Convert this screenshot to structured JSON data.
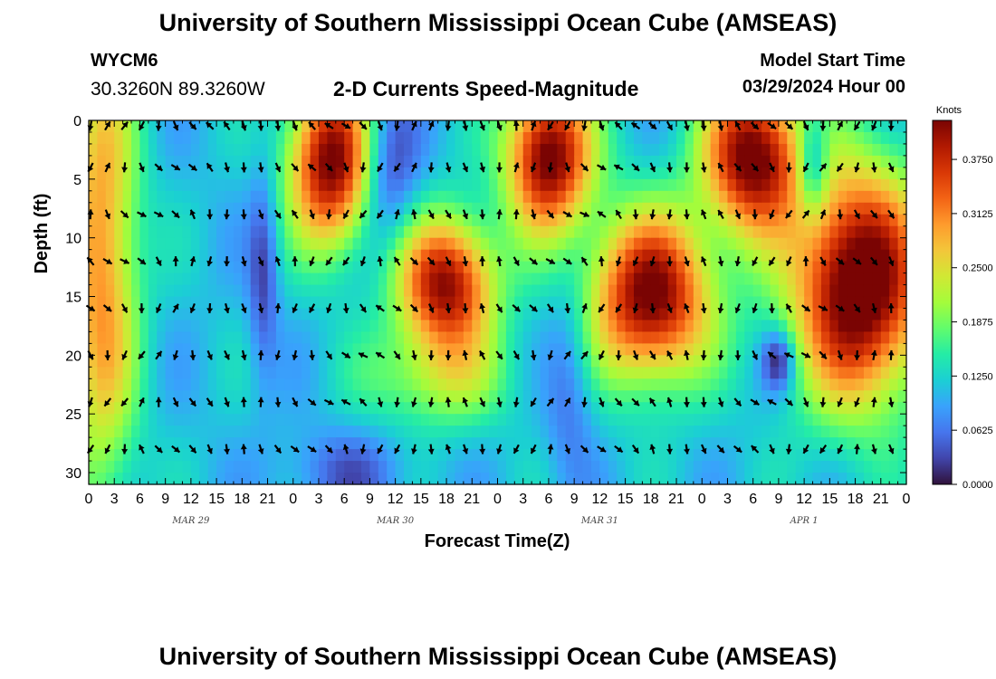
{
  "header": {
    "title_top": "University of Southern Mississippi Ocean Cube (AMSEAS)",
    "title_bottom": "University of Southern Mississippi Ocean Cube (AMSEAS)",
    "station_id": "WYCM6",
    "station_coords": "30.3260N  89.3260W",
    "plot_title": "2-D Currents Speed-Magnitude",
    "model_start_label": "Model Start Time",
    "model_start_value": "03/29/2024 Hour 00"
  },
  "chart_data": {
    "type": "heatmap",
    "title": "2-D Currents Speed-Magnitude",
    "xlabel": "Forecast Time(Z)",
    "ylabel": "Depth (ft)",
    "x_ticks": [
      "0",
      "3",
      "6",
      "9",
      "12",
      "15",
      "18",
      "21",
      "0",
      "3",
      "6",
      "9",
      "12",
      "15",
      "18",
      "21",
      "0",
      "3",
      "6",
      "9",
      "12",
      "15",
      "18",
      "21",
      "0",
      "3",
      "6",
      "9",
      "12",
      "15",
      "18",
      "21",
      "0"
    ],
    "x_range_hours": [
      0,
      96
    ],
    "date_labels": [
      {
        "label": "MAR 29",
        "hour": 12
      },
      {
        "label": "MAR 30",
        "hour": 36
      },
      {
        "label": "MAR 31",
        "hour": 60
      },
      {
        "label": "APR 1",
        "hour": 84
      }
    ],
    "y_ticks": [
      0,
      5,
      10,
      15,
      20,
      25,
      30
    ],
    "y_range_ft": [
      0,
      31
    ],
    "colorbar": {
      "label": "Knots",
      "min": 0.0,
      "max": 0.42,
      "ticks": [
        "0.0000",
        "0.0625",
        "0.1250",
        "0.1875",
        "0.2500",
        "0.3125",
        "0.3750"
      ],
      "colors": [
        "#30123b",
        "#4145ab",
        "#4675ed",
        "#39a2fc",
        "#1bcfd4",
        "#24eca6",
        "#61fc6c",
        "#a4fc3b",
        "#d1e834",
        "#f3c63a",
        "#fe9b2d",
        "#f36315",
        "#d93806",
        "#b11901",
        "#7a0403"
      ]
    },
    "anomalies": [
      {
        "t": 1.5,
        "d": 12,
        "st": 3,
        "sd": 14,
        "v": 0.2
      },
      {
        "t": 20.5,
        "d": 13,
        "st": 1.2,
        "sd": 6,
        "v": -0.08
      },
      {
        "t": 28.5,
        "d": 3.5,
        "st": 3.5,
        "sd": 5,
        "v": 0.32
      },
      {
        "t": 35,
        "d": 4,
        "st": 2.5,
        "sd": 4.5,
        "v": -0.1
      },
      {
        "t": 42,
        "d": 14,
        "st": 4,
        "sd": 4,
        "v": 0.3
      },
      {
        "t": 41,
        "d": 22,
        "st": 6,
        "sd": 3,
        "v": 0.1
      },
      {
        "t": 54,
        "d": 3,
        "st": 3.5,
        "sd": 4.5,
        "v": 0.33
      },
      {
        "t": 56.5,
        "d": 22,
        "st": 2,
        "sd": 6,
        "v": -0.06
      },
      {
        "t": 66,
        "d": 15,
        "st": 5,
        "sd": 5,
        "v": 0.32
      },
      {
        "t": 78,
        "d": 3,
        "st": 4,
        "sd": 4.5,
        "v": 0.33
      },
      {
        "t": 85,
        "d": 4,
        "st": 1.3,
        "sd": 3,
        "v": -0.12
      },
      {
        "t": 90.5,
        "d": 14,
        "st": 5.5,
        "sd": 7,
        "v": 0.36
      },
      {
        "t": 81,
        "d": 20.5,
        "st": 1.4,
        "sd": 1.8,
        "v": -0.12
      },
      {
        "t": 30,
        "d": 30,
        "st": 5,
        "sd": 2.5,
        "v": -0.06
      }
    ],
    "vectors": {
      "depths_ft": [
        0,
        4,
        8,
        12,
        16,
        20,
        24,
        28
      ],
      "start_hour": 0,
      "step_hours": 2,
      "count": 48
    }
  }
}
